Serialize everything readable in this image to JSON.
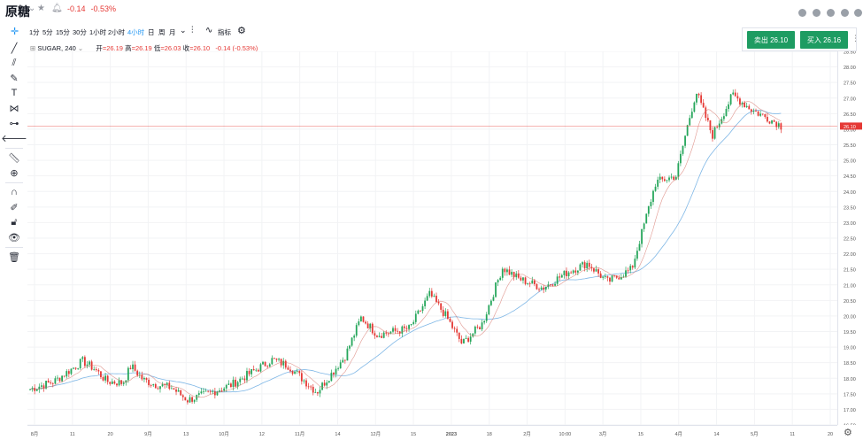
{
  "header": {
    "title": "原糖",
    "change": "-0.14",
    "change_pct": "-0.53%"
  },
  "timeframes": [
    {
      "label": "1分",
      "active": false
    },
    {
      "label": "5分",
      "active": false
    },
    {
      "label": "15分",
      "active": false
    },
    {
      "label": "30分",
      "active": false
    },
    {
      "label": "1小时",
      "active": false
    },
    {
      "label": "2小时",
      "active": false
    },
    {
      "label": "4小时",
      "active": true
    },
    {
      "label": "日",
      "active": false
    },
    {
      "label": "周",
      "active": false
    },
    {
      "label": "月",
      "active": false
    }
  ],
  "indicators_label": "指标",
  "legend": {
    "symbol": "SUGAR, 240",
    "open_label": "开",
    "open": "=26.19",
    "high_label": "高",
    "high": "=26.19",
    "low_label": "低",
    "low": "=26.03",
    "close_label": "收",
    "close": "=26.10",
    "change": "-0.14 (-0.53%)"
  },
  "trade": {
    "sell_label": "卖出 26.10",
    "buy_label": "买入 26.16",
    "color": "#1e9c62"
  },
  "colors": {
    "up": "#26a65b",
    "down": "#e53935",
    "ma_fast": "#d36a5e",
    "ma_slow": "#7fb7e6",
    "price_line": "#e53935"
  },
  "chart_data": {
    "type": "candlestick",
    "symbol": "SUGAR, 240",
    "y_ticks": [
      "16.50",
      "17.00",
      "17.50",
      "18.00",
      "18.50",
      "19.00",
      "19.50",
      "20.00",
      "20.50",
      "21.00",
      "21.50",
      "22.00",
      "22.50",
      "23.00",
      "23.50",
      "24.00",
      "24.50",
      "25.00",
      "25.50",
      "26.00",
      "26.50",
      "27.00",
      "27.50",
      "28.00",
      "28.50"
    ],
    "x_ticks": [
      "8月",
      "11",
      "20",
      "9月",
      "13",
      "10月",
      "12",
      "11月",
      "14",
      "12月",
      "15",
      "2023",
      "18",
      "2月",
      "10:00",
      "3月",
      "15",
      "4月",
      "14",
      "5月",
      "11",
      "20"
    ],
    "ylim": [
      16.5,
      28.5
    ],
    "last_price": "26.10",
    "path_points": [
      {
        "x": 0.0,
        "y": 17.65
      },
      {
        "x": 0.03,
        "y": 17.9
      },
      {
        "x": 0.065,
        "y": 18.55
      },
      {
        "x": 0.08,
        "y": 18.3
      },
      {
        "x": 0.095,
        "y": 17.9
      },
      {
        "x": 0.115,
        "y": 17.85
      },
      {
        "x": 0.125,
        "y": 18.4
      },
      {
        "x": 0.14,
        "y": 17.95
      },
      {
        "x": 0.155,
        "y": 17.8
      },
      {
        "x": 0.175,
        "y": 17.7
      },
      {
        "x": 0.195,
        "y": 17.3
      },
      {
        "x": 0.225,
        "y": 17.55
      },
      {
        "x": 0.25,
        "y": 17.8
      },
      {
        "x": 0.3,
        "y": 18.6
      },
      {
        "x": 0.32,
        "y": 18.4
      },
      {
        "x": 0.355,
        "y": 17.55
      },
      {
        "x": 0.39,
        "y": 18.7
      },
      {
        "x": 0.41,
        "y": 19.95
      },
      {
        "x": 0.43,
        "y": 19.4
      },
      {
        "x": 0.47,
        "y": 19.6
      },
      {
        "x": 0.495,
        "y": 20.7
      },
      {
        "x": 0.515,
        "y": 20.0
      },
      {
        "x": 0.535,
        "y": 19.1
      },
      {
        "x": 0.56,
        "y": 19.75
      },
      {
        "x": 0.585,
        "y": 21.55
      },
      {
        "x": 0.605,
        "y": 21.2
      },
      {
        "x": 0.635,
        "y": 20.9
      },
      {
        "x": 0.665,
        "y": 21.4
      },
      {
        "x": 0.69,
        "y": 21.7
      },
      {
        "x": 0.715,
        "y": 21.1
      },
      {
        "x": 0.745,
        "y": 21.5
      },
      {
        "x": 0.775,
        "y": 24.3
      },
      {
        "x": 0.8,
        "y": 24.5
      },
      {
        "x": 0.815,
        "y": 26.2
      },
      {
        "x": 0.825,
        "y": 27.2
      },
      {
        "x": 0.845,
        "y": 25.8
      },
      {
        "x": 0.87,
        "y": 27.1
      },
      {
        "x": 0.895,
        "y": 26.6
      },
      {
        "x": 0.91,
        "y": 26.4
      },
      {
        "x": 0.925,
        "y": 26.2
      },
      {
        "x": 0.93,
        "y": 26.1
      }
    ]
  }
}
